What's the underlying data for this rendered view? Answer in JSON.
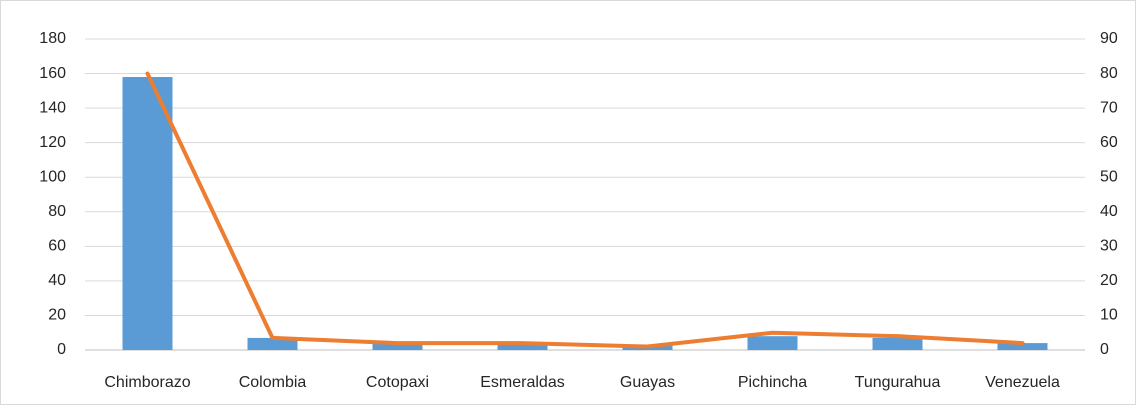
{
  "chart_data": {
    "type": "bar_line",
    "categories": [
      "Chimborazo",
      "Colombia",
      "Cotopaxi",
      "Esmeraldas",
      "Guayas",
      "Pichincha",
      "Tungurahua",
      "Venezuela"
    ],
    "series": [
      {
        "type": "bar",
        "color": "#5b9bd5",
        "values": [
          158,
          7,
          4,
          4,
          3,
          8,
          7,
          4
        ]
      },
      {
        "type": "line",
        "axis": "y2",
        "color": "#ed7d31",
        "values": [
          80,
          3.5,
          2,
          2,
          1,
          5,
          4,
          2
        ]
      }
    ],
    "ylim": [
      0,
      180
    ],
    "yticks": [
      0,
      20,
      40,
      60,
      80,
      100,
      120,
      140,
      160,
      180
    ],
    "y2lim": [
      0,
      90
    ],
    "y2ticks": [
      0,
      10,
      20,
      30,
      40,
      50,
      60,
      70,
      80,
      90
    ],
    "grid": true
  }
}
